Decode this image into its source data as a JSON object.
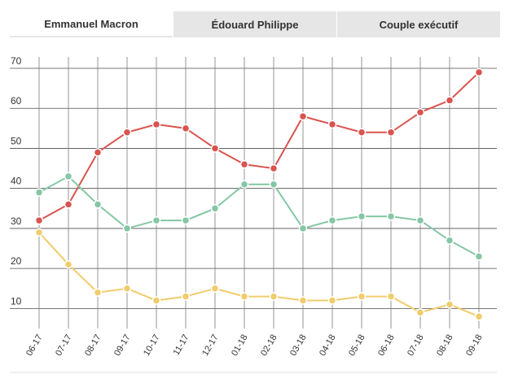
{
  "tabs": [
    {
      "label": "Emmanuel Macron",
      "active": true
    },
    {
      "label": "Édouard Philippe",
      "active": false
    },
    {
      "label": "Couple exécutif",
      "active": false
    }
  ],
  "chart_data": {
    "type": "line",
    "categories": [
      "06-17",
      "07-17",
      "08-17",
      "09-17",
      "10-17",
      "11-17",
      "12-17",
      "01-18",
      "02-18",
      "03-18",
      "04-18",
      "05-18",
      "06-18",
      "07-18",
      "08-18",
      "09-18"
    ],
    "ylim": [
      5,
      70
    ],
    "yticks": [
      10,
      20,
      30,
      40,
      50,
      60,
      70
    ],
    "grid": true,
    "series": [
      {
        "color": "#d9534f",
        "values": [
          32,
          36,
          49,
          54,
          56,
          55,
          50,
          46,
          45,
          58,
          56,
          54,
          54,
          59,
          62,
          69
        ]
      },
      {
        "color": "#85c7a4",
        "values": [
          39,
          43,
          36,
          30,
          32,
          32,
          35,
          41,
          41,
          30,
          32,
          33,
          33,
          32,
          27,
          23
        ]
      },
      {
        "color": "#f0cc6b",
        "values": [
          29,
          21,
          14,
          15,
          12,
          13,
          15,
          13,
          13,
          12,
          12,
          13,
          13,
          9,
          11,
          8
        ]
      }
    ]
  }
}
